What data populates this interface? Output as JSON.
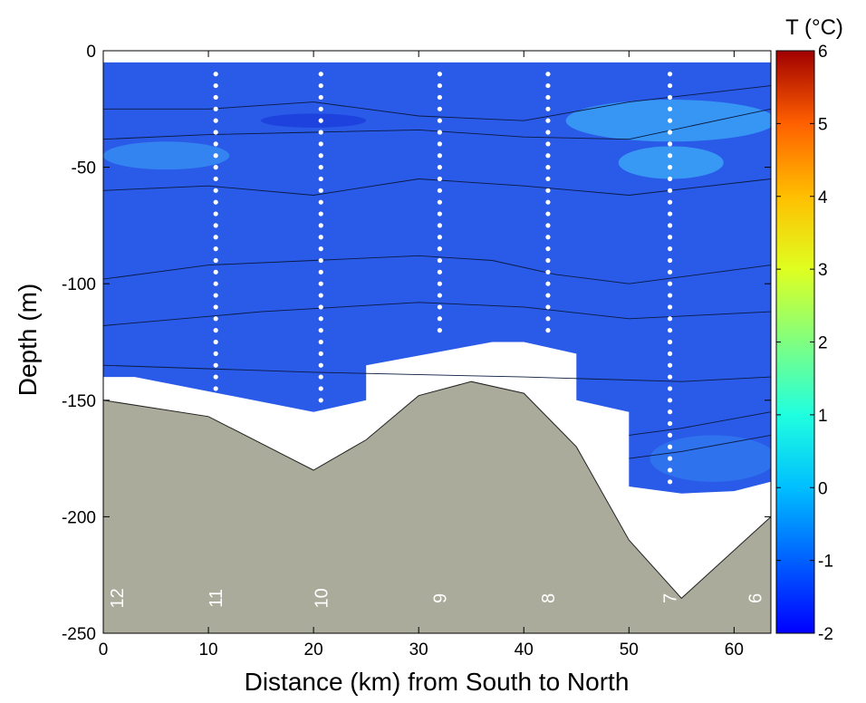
{
  "chart_data": {
    "type": "heatmap",
    "title": "",
    "xlabel": "Distance (km) from South to North",
    "ylabel": "Depth (m)",
    "xlim": [
      0,
      63.5
    ],
    "ylim": [
      -250,
      0
    ],
    "xticks": [
      0,
      10,
      20,
      30,
      40,
      50,
      60
    ],
    "yticks": [
      0,
      -50,
      -100,
      -150,
      -200,
      -250
    ],
    "colorbar": {
      "title": "T (°C)",
      "range": [
        -2,
        6
      ],
      "ticks": [
        6,
        5,
        4,
        3,
        2,
        1,
        0,
        -1,
        -2
      ],
      "colormap": "jet"
    },
    "colors": {
      "background_water": "#2a5ae8",
      "warm_patch": "#3aa0f5",
      "cold_patch": "#1838d8",
      "bottom": "#abab9b",
      "station_dots": "#ffffff"
    },
    "stations": [
      {
        "label": "12",
        "x": 1.3
      },
      {
        "label": "11",
        "x": 10.7,
        "cast_top": -10,
        "cast_bottom": -145
      },
      {
        "label": "10",
        "x": 20.7,
        "cast_top": -10,
        "cast_bottom": -150
      },
      {
        "label": "9",
        "x": 32.0,
        "cast_top": -10,
        "cast_bottom": -120
      },
      {
        "label": "8",
        "x": 42.3,
        "cast_top": -10,
        "cast_bottom": -122
      },
      {
        "label": "7",
        "x": 53.9,
        "cast_top": -10,
        "cast_bottom": -185
      },
      {
        "label": "6",
        "x": 62.0
      }
    ],
    "bathymetry": [
      [
        0,
        -150
      ],
      [
        10,
        -157
      ],
      [
        20,
        -180
      ],
      [
        25,
        -167
      ],
      [
        30,
        -148
      ],
      [
        35,
        -142
      ],
      [
        40,
        -147
      ],
      [
        45,
        -170
      ],
      [
        50,
        -210
      ],
      [
        55,
        -235
      ],
      [
        63.5,
        -200
      ]
    ],
    "data_region_bottom": [
      [
        0,
        -140
      ],
      [
        3,
        -140
      ],
      [
        20,
        -155
      ],
      [
        25,
        -150
      ],
      [
        25,
        -135
      ],
      [
        37,
        -125
      ],
      [
        40,
        -125
      ],
      [
        45,
        -130
      ],
      [
        45,
        -150
      ],
      [
        50,
        -155
      ],
      [
        50,
        -187
      ],
      [
        55,
        -190
      ],
      [
        60,
        -189
      ],
      [
        63.5,
        -185
      ]
    ],
    "data_region_top": -5
  }
}
